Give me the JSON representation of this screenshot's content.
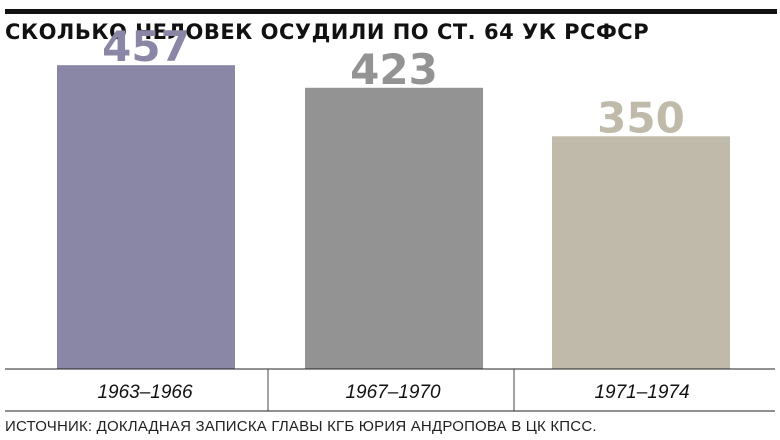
{
  "title": "СКОЛЬКО ЧЕЛОВЕК ОСУДИЛИ ПО СТ. 64 УК РСФСР",
  "source": "ИСТОЧНИК: ДОКЛАДНАЯ ЗАПИСКА ГЛАВЫ КГБ ЮРИЯ АНДРОПОВА В ЦК КПСС.",
  "chart_data": {
    "type": "bar",
    "title": "СКОЛЬКО ЧЕЛОВЕК ОСУДИЛИ ПО СТ. 64 УК РСФСР",
    "categories": [
      "1963–1966",
      "1967–1970",
      "1971–1974"
    ],
    "values": [
      457,
      423,
      350
    ],
    "value_labels": [
      "457",
      "423",
      "350"
    ],
    "bar_colors": [
      "#8a87a6",
      "#939393",
      "#bfbaa9"
    ],
    "label_colors": [
      "#8a87a6",
      "#939393",
      "#bfbaa9"
    ],
    "xlabel": "",
    "ylabel": "",
    "ylim": [
      0,
      537
    ],
    "grid": false,
    "legend": "none"
  }
}
